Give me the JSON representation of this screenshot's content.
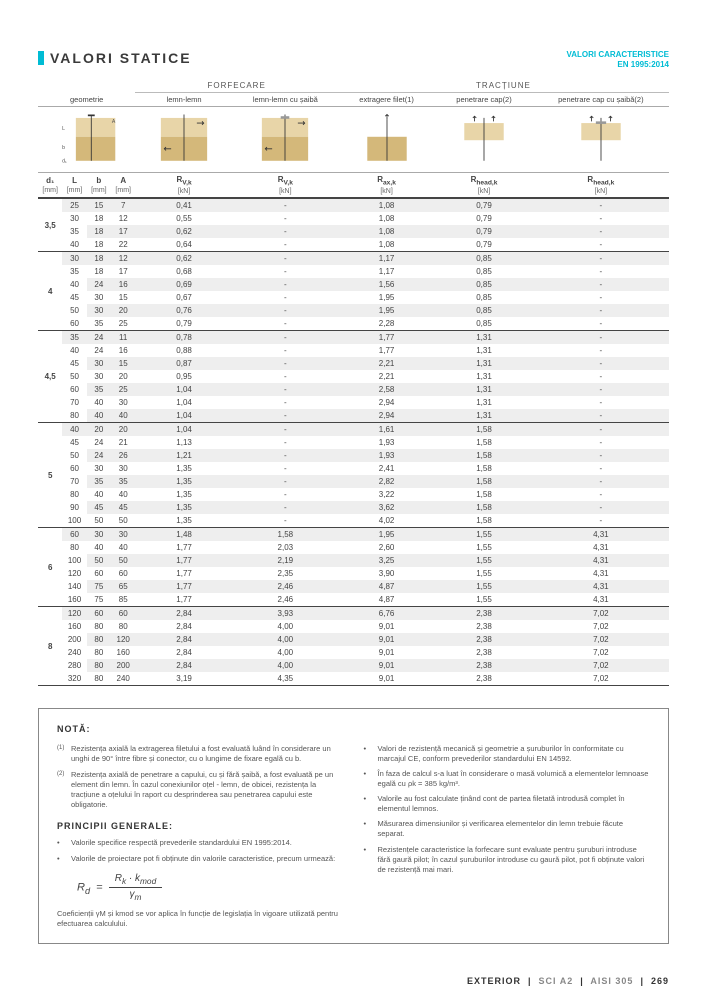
{
  "title": "VALORI STATICE",
  "subtitle_line1": "VALORI CARACTERISTICE",
  "subtitle_line2": "EN 1995:2014",
  "group_forfecare": "FORFECARE",
  "group_tractiune": "TRACȚIUNE",
  "col_geometrie": "geometrie",
  "col_lemn_lemn": "lemn-lemn",
  "col_lemn_saiba": "lemn-lemn cu șaibă",
  "col_extragere": "extragere filet(1)",
  "col_penetrare": "penetrare cap(2)",
  "col_penetrare_saiba": "penetrare cap cu șaibă(2)",
  "sym_d1": "d₁",
  "unit_d1": "[mm]",
  "sym_L": "L",
  "unit_L": "[mm]",
  "sym_b": "b",
  "unit_b": "[mm]",
  "sym_A": "A",
  "unit_A": "[mm]",
  "sym_Rvk1": "R",
  "sub_Rvk1": "V,k",
  "unit_Rvk1": "[kN]",
  "sym_Rvk2": "R",
  "sub_Rvk2": "V,k",
  "unit_Rvk2": "[kN]",
  "sym_Rax": "R",
  "sub_Rax": "ax,k",
  "unit_Rax": "[kN]",
  "sym_Rhead1": "R",
  "sub_Rhead1": "head,k",
  "unit_Rhead1": "[kN]",
  "sym_Rhead2": "R",
  "sub_Rhead2": "head,k",
  "unit_Rhead2": "[kN]",
  "groups": [
    {
      "d1": "3,5",
      "rows": [
        {
          "L": "25",
          "b": "15",
          "A": "7",
          "rv1": "0,41",
          "rv2": "-",
          "rax": "1,08",
          "rh1": "0,79",
          "rh2": "-"
        },
        {
          "L": "30",
          "b": "18",
          "A": "12",
          "rv1": "0,55",
          "rv2": "-",
          "rax": "1,08",
          "rh1": "0,79",
          "rh2": "-"
        },
        {
          "L": "35",
          "b": "18",
          "A": "17",
          "rv1": "0,62",
          "rv2": "-",
          "rax": "1,08",
          "rh1": "0,79",
          "rh2": "-"
        },
        {
          "L": "40",
          "b": "18",
          "A": "22",
          "rv1": "0,64",
          "rv2": "-",
          "rax": "1,08",
          "rh1": "0,79",
          "rh2": "-"
        }
      ]
    },
    {
      "d1": "4",
      "rows": [
        {
          "L": "30",
          "b": "18",
          "A": "12",
          "rv1": "0,62",
          "rv2": "-",
          "rax": "1,17",
          "rh1": "0,85",
          "rh2": "-"
        },
        {
          "L": "35",
          "b": "18",
          "A": "17",
          "rv1": "0,68",
          "rv2": "-",
          "rax": "1,17",
          "rh1": "0,85",
          "rh2": "-"
        },
        {
          "L": "40",
          "b": "24",
          "A": "16",
          "rv1": "0,69",
          "rv2": "-",
          "rax": "1,56",
          "rh1": "0,85",
          "rh2": "-"
        },
        {
          "L": "45",
          "b": "30",
          "A": "15",
          "rv1": "0,67",
          "rv2": "-",
          "rax": "1,95",
          "rh1": "0,85",
          "rh2": "-"
        },
        {
          "L": "50",
          "b": "30",
          "A": "20",
          "rv1": "0,76",
          "rv2": "-",
          "rax": "1,95",
          "rh1": "0,85",
          "rh2": "-"
        },
        {
          "L": "60",
          "b": "35",
          "A": "25",
          "rv1": "0,79",
          "rv2": "-",
          "rax": "2,28",
          "rh1": "0,85",
          "rh2": "-"
        }
      ]
    },
    {
      "d1": "4,5",
      "rows": [
        {
          "L": "35",
          "b": "24",
          "A": "11",
          "rv1": "0,78",
          "rv2": "-",
          "rax": "1,77",
          "rh1": "1,31",
          "rh2": "-"
        },
        {
          "L": "40",
          "b": "24",
          "A": "16",
          "rv1": "0,88",
          "rv2": "-",
          "rax": "1,77",
          "rh1": "1,31",
          "rh2": "-"
        },
        {
          "L": "45",
          "b": "30",
          "A": "15",
          "rv1": "0,87",
          "rv2": "-",
          "rax": "2,21",
          "rh1": "1,31",
          "rh2": "-"
        },
        {
          "L": "50",
          "b": "30",
          "A": "20",
          "rv1": "0,95",
          "rv2": "-",
          "rax": "2,21",
          "rh1": "1,31",
          "rh2": "-"
        },
        {
          "L": "60",
          "b": "35",
          "A": "25",
          "rv1": "1,04",
          "rv2": "-",
          "rax": "2,58",
          "rh1": "1,31",
          "rh2": "-"
        },
        {
          "L": "70",
          "b": "40",
          "A": "30",
          "rv1": "1,04",
          "rv2": "-",
          "rax": "2,94",
          "rh1": "1,31",
          "rh2": "-"
        },
        {
          "L": "80",
          "b": "40",
          "A": "40",
          "rv1": "1,04",
          "rv2": "-",
          "rax": "2,94",
          "rh1": "1,31",
          "rh2": "-"
        }
      ]
    },
    {
      "d1": "5",
      "rows": [
        {
          "L": "40",
          "b": "20",
          "A": "20",
          "rv1": "1,04",
          "rv2": "-",
          "rax": "1,61",
          "rh1": "1,58",
          "rh2": "-"
        },
        {
          "L": "45",
          "b": "24",
          "A": "21",
          "rv1": "1,13",
          "rv2": "-",
          "rax": "1,93",
          "rh1": "1,58",
          "rh2": "-"
        },
        {
          "L": "50",
          "b": "24",
          "A": "26",
          "rv1": "1,21",
          "rv2": "-",
          "rax": "1,93",
          "rh1": "1,58",
          "rh2": "-"
        },
        {
          "L": "60",
          "b": "30",
          "A": "30",
          "rv1": "1,35",
          "rv2": "-",
          "rax": "2,41",
          "rh1": "1,58",
          "rh2": "-"
        },
        {
          "L": "70",
          "b": "35",
          "A": "35",
          "rv1": "1,35",
          "rv2": "-",
          "rax": "2,82",
          "rh1": "1,58",
          "rh2": "-"
        },
        {
          "L": "80",
          "b": "40",
          "A": "40",
          "rv1": "1,35",
          "rv2": "-",
          "rax": "3,22",
          "rh1": "1,58",
          "rh2": "-"
        },
        {
          "L": "90",
          "b": "45",
          "A": "45",
          "rv1": "1,35",
          "rv2": "-",
          "rax": "3,62",
          "rh1": "1,58",
          "rh2": "-"
        },
        {
          "L": "100",
          "b": "50",
          "A": "50",
          "rv1": "1,35",
          "rv2": "-",
          "rax": "4,02",
          "rh1": "1,58",
          "rh2": "-"
        }
      ]
    },
    {
      "d1": "6",
      "rows": [
        {
          "L": "60",
          "b": "30",
          "A": "30",
          "rv1": "1,48",
          "rv2": "1,58",
          "rax": "1,95",
          "rh1": "1,55",
          "rh2": "4,31"
        },
        {
          "L": "80",
          "b": "40",
          "A": "40",
          "rv1": "1,77",
          "rv2": "2,03",
          "rax": "2,60",
          "rh1": "1,55",
          "rh2": "4,31"
        },
        {
          "L": "100",
          "b": "50",
          "A": "50",
          "rv1": "1,77",
          "rv2": "2,19",
          "rax": "3,25",
          "rh1": "1,55",
          "rh2": "4,31"
        },
        {
          "L": "120",
          "b": "60",
          "A": "60",
          "rv1": "1,77",
          "rv2": "2,35",
          "rax": "3,90",
          "rh1": "1,55",
          "rh2": "4,31"
        },
        {
          "L": "140",
          "b": "75",
          "A": "65",
          "rv1": "1,77",
          "rv2": "2,46",
          "rax": "4,87",
          "rh1": "1,55",
          "rh2": "4,31"
        },
        {
          "L": "160",
          "b": "75",
          "A": "85",
          "rv1": "1,77",
          "rv2": "2,46",
          "rax": "4,87",
          "rh1": "1,55",
          "rh2": "4,31"
        }
      ]
    },
    {
      "d1": "8",
      "rows": [
        {
          "L": "120",
          "b": "60",
          "A": "60",
          "rv1": "2,84",
          "rv2": "3,93",
          "rax": "6,76",
          "rh1": "2,38",
          "rh2": "7,02"
        },
        {
          "L": "160",
          "b": "80",
          "A": "80",
          "rv1": "2,84",
          "rv2": "4,00",
          "rax": "9,01",
          "rh1": "2,38",
          "rh2": "7,02"
        },
        {
          "L": "200",
          "b": "80",
          "A": "120",
          "rv1": "2,84",
          "rv2": "4,00",
          "rax": "9,01",
          "rh1": "2,38",
          "rh2": "7,02"
        },
        {
          "L": "240",
          "b": "80",
          "A": "160",
          "rv1": "2,84",
          "rv2": "4,00",
          "rax": "9,01",
          "rh1": "2,38",
          "rh2": "7,02"
        },
        {
          "L": "280",
          "b": "80",
          "A": "200",
          "rv1": "2,84",
          "rv2": "4,00",
          "rax": "9,01",
          "rh1": "2,38",
          "rh2": "7,02"
        },
        {
          "L": "320",
          "b": "80",
          "A": "240",
          "rv1": "3,19",
          "rv2": "4,35",
          "rax": "9,01",
          "rh1": "2,38",
          "rh2": "7,02"
        }
      ]
    }
  ],
  "nota_title": "NOTĂ:",
  "note1": "Rezistența axială la extragerea filetului a fost evaluată luând în considerare un unghi de 90° între fibre și conector, cu o lungime de fixare egală cu b.",
  "note2": "Rezistența axială de penetrare a capului, cu și fără șaibă, a fost evaluată pe un element din lemn. În cazul conexiunilor oțel - lemn, de obicei, rezistența la tracțiune a oțelului în raport cu desprinderea sau penetrarea capului este obligatorie.",
  "principii_title": "PRINCIPII GENERALE:",
  "principiu1": "Valorile specifice respectă prevederile standardului EN 1995:2014.",
  "principiu2": "Valorile de proiectare pot fi obținute din valorile caracteristice, precum urmează:",
  "formula_Rd": "R",
  "formula_d": "d",
  "formula_Rk": "R",
  "formula_k": "k",
  "formula_kmod": "· k",
  "formula_mod": "mod",
  "formula_gamma": "γ",
  "formula_m": "m",
  "coef_text": "Coeficienții γM și kmod se vor aplica în funcție de legislația în vigoare utilizată pentru efectuarea calculului.",
  "bullet_r1": "Valori de rezistență mecanică și geometrie a șuruburilor în conformitate cu marcajul CE, conform prevederilor standardului EN 14592.",
  "bullet_r2": "În faza de calcul s-a luat în considerare o masă volumică a elementelor lemnoase egală cu ρk = 385 kg/m³.",
  "bullet_r3": "Valorile au fost calculate ținând cont de partea filetată introdusă complet în elementul lemnos.",
  "bullet_r4": "Măsurarea dimensiunilor și verificarea elementelor din lemn trebuie făcute separat.",
  "bullet_r5": "Rezistențele caracteristice la forfecare sunt evaluate pentru șuruburi introduse fără gaură pilot; în cazul șuruburilor introduse cu gaură pilot, pot fi obținute valori de rezistență mai mari.",
  "footer_exterior": "EXTERIOR",
  "footer_sci": "SCI A2",
  "footer_aisi": "AISI 305",
  "footer_page": "269",
  "colors": {
    "accent": "#00bcd4",
    "wood_light": "#e8d5a8",
    "wood_dark": "#d4b87a"
  }
}
